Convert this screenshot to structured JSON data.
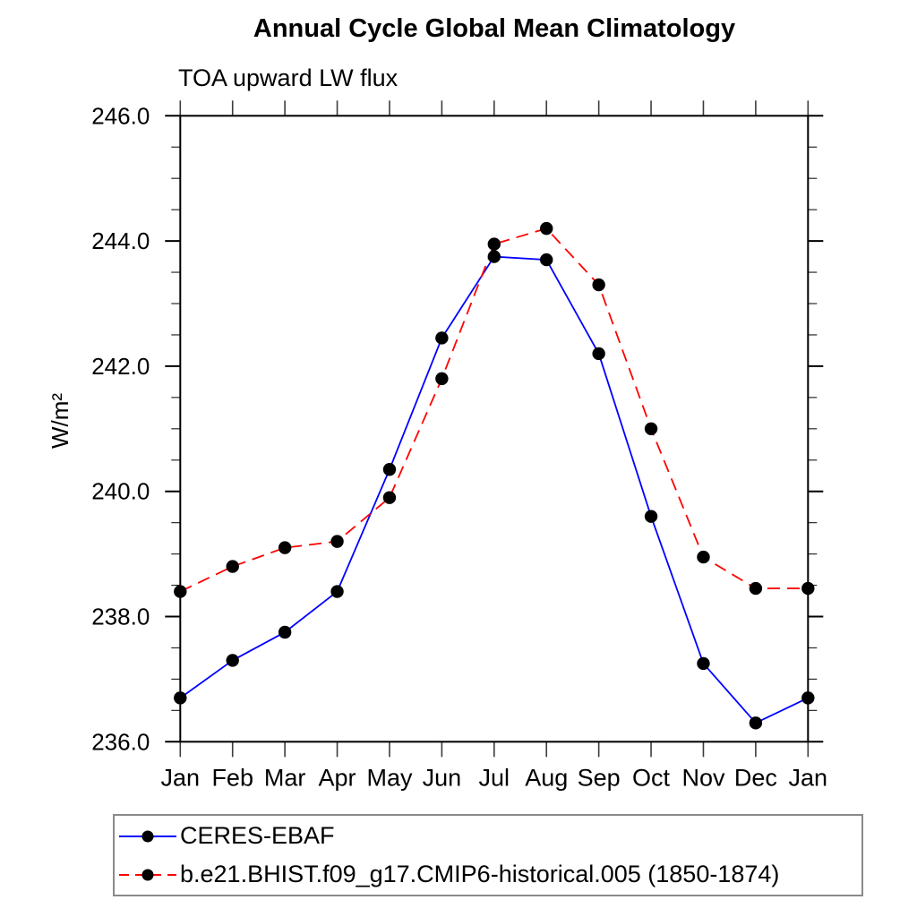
{
  "chart_data": {
    "type": "line",
    "title": "Annual Cycle Global Mean Climatology",
    "subtitle": "TOA upward LW flux",
    "ylabel": "W/m²",
    "xlabel": "",
    "x_tick_labels": [
      "Jan",
      "Feb",
      "Mar",
      "Apr",
      "May",
      "Jun",
      "Jul",
      "Aug",
      "Sep",
      "Oct",
      "Nov",
      "Dec",
      "Jan"
    ],
    "ylim": [
      236.0,
      246.0
    ],
    "y_major_ticks": [
      236.0,
      238.0,
      240.0,
      242.0,
      244.0,
      246.0
    ],
    "y_minor_step": 0.5,
    "y_tick_decimals": 1,
    "grid": false,
    "frame_color": "#000000",
    "legend_position": "bottom-left",
    "marker": "filled-circle",
    "marker_color": "#000000",
    "series": [
      {
        "name": "CERES-EBAF",
        "color": "#0000ff",
        "line_style": "solid",
        "values": [
          236.7,
          237.3,
          237.75,
          238.4,
          240.35,
          242.45,
          243.75,
          243.7,
          242.2,
          239.6,
          237.25,
          236.3,
          236.7
        ]
      },
      {
        "name": "b.e21.BHIST.f09_g17.CMIP6-historical.005 (1850-1874)",
        "color": "#ff0000",
        "line_style": "dashed",
        "values": [
          238.4,
          238.8,
          239.1,
          239.2,
          239.9,
          241.8,
          243.95,
          244.2,
          243.3,
          241.0,
          238.95,
          238.45,
          238.45
        ]
      }
    ]
  }
}
